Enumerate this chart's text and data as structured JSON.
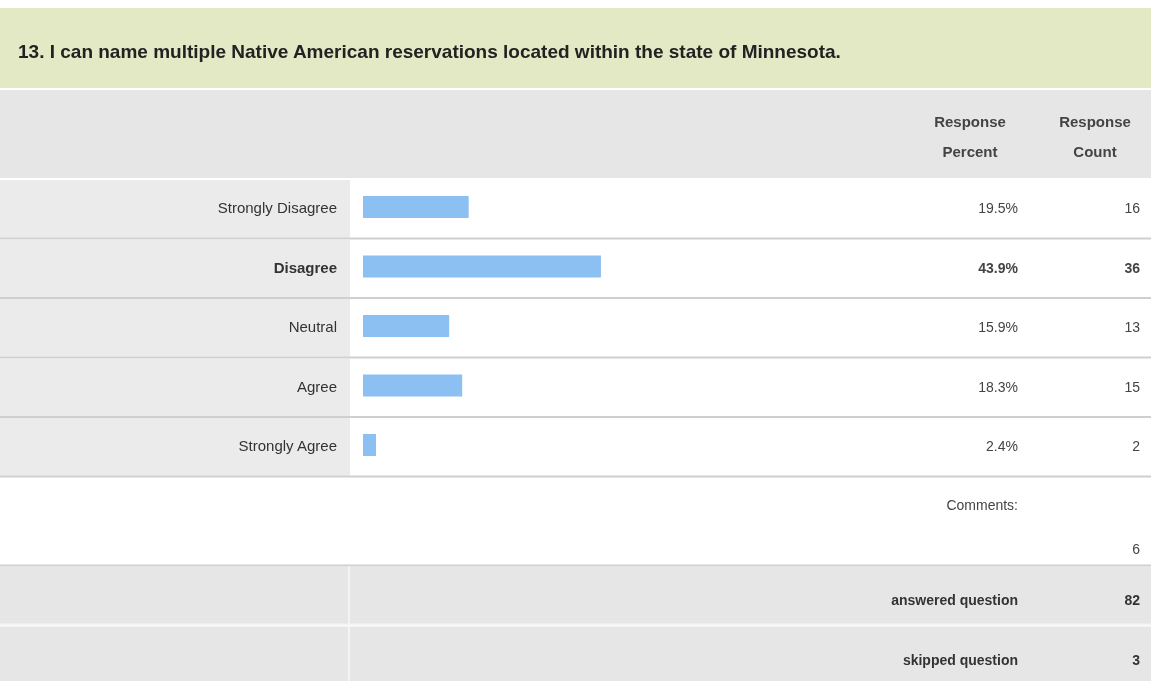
{
  "chart_data": {
    "type": "bar",
    "orientation": "horizontal",
    "title": "13. I can name multiple Native American reservations located within the state of Minnesota.",
    "categories": [
      "Strongly Disagree",
      "Disagree",
      "Neutral",
      "Agree",
      "Strongly Agree"
    ],
    "values": [
      19.5,
      43.9,
      15.9,
      18.3,
      2.4
    ],
    "value_labels": [
      "19.5%",
      "43.9%",
      "15.9%",
      "18.3%",
      "2.4%"
    ],
    "color": "#8dc0f2",
    "annotations": [
      "Response Percent",
      "Response Count",
      "16",
      "36",
      "13",
      "15",
      "2",
      "Comments:",
      "6",
      "answered question",
      "82",
      "skipped question",
      "3"
    ]
  }
}
